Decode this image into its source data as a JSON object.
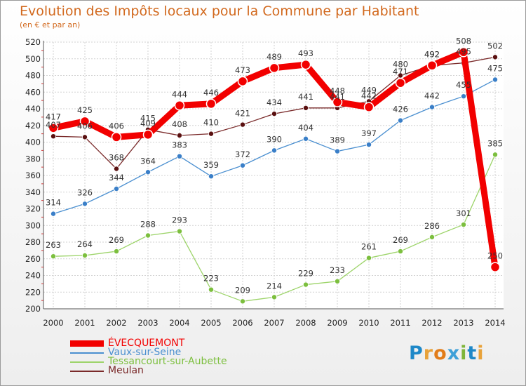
{
  "title": "Evolution des Impôts locaux pour la Commune par Habitant",
  "subtitle": "(en € et par an)",
  "logo": {
    "text": "Proxiti",
    "letters": [
      "P",
      "r",
      "o",
      "x",
      "i",
      "t",
      "i"
    ],
    "letter_colors": [
      "#1e88c8",
      "#e8a23a",
      "#e27d1a",
      "#3ea0d8",
      "#7fb53a",
      "#1e88c8",
      "#e8a23a"
    ]
  },
  "chart_data": {
    "type": "line",
    "title": "Evolution des Impôts locaux pour la Commune par Habitant",
    "subtitle": "(en € et par an)",
    "xlabel": "",
    "ylabel": "",
    "categories": [
      "2000",
      "2001",
      "2002",
      "2003",
      "2004",
      "2005",
      "2006",
      "2007",
      "2008",
      "2009",
      "2010",
      "2011",
      "2012",
      "2013",
      "2014"
    ],
    "ylim": [
      200,
      520
    ],
    "yticks": [
      200,
      220,
      240,
      260,
      280,
      300,
      320,
      340,
      360,
      380,
      400,
      420,
      440,
      460,
      480,
      500,
      520
    ],
    "grid": true,
    "legend_position": "bottom-left",
    "series": [
      {
        "name": "Meulan",
        "color": "#7a2a2a",
        "marker": "#5a1010",
        "values": [
          407,
          406,
          368,
          415,
          408,
          410,
          421,
          434,
          441,
          441,
          449,
          480,
          492,
          495,
          502
        ]
      },
      {
        "name": "Vaux-sur-Seine",
        "color": "#4a8fd0",
        "marker": "#3a7fc8",
        "values": [
          314,
          326,
          344,
          364,
          383,
          359,
          372,
          390,
          404,
          389,
          397,
          426,
          442,
          455,
          475
        ]
      },
      {
        "name": "Tessancourt-sur-Aubette",
        "color": "#9dd46a",
        "marker": "#7cbf3e",
        "values": [
          263,
          264,
          269,
          288,
          293,
          223,
          209,
          214,
          229,
          233,
          261,
          269,
          286,
          301,
          385
        ]
      },
      {
        "name": "ÉVECQUEMONT",
        "color": "#f20000",
        "marker": "#f20000",
        "values": [
          417,
          425,
          406,
          409,
          444,
          446,
          473,
          489,
          493,
          448,
          442,
          471,
          492,
          508,
          250
        ]
      }
    ],
    "legend": [
      "ÉVECQUEMONT",
      "Vaux-sur-Seine",
      "Tessancourt-sur-Aubette",
      "Meulan"
    ]
  }
}
